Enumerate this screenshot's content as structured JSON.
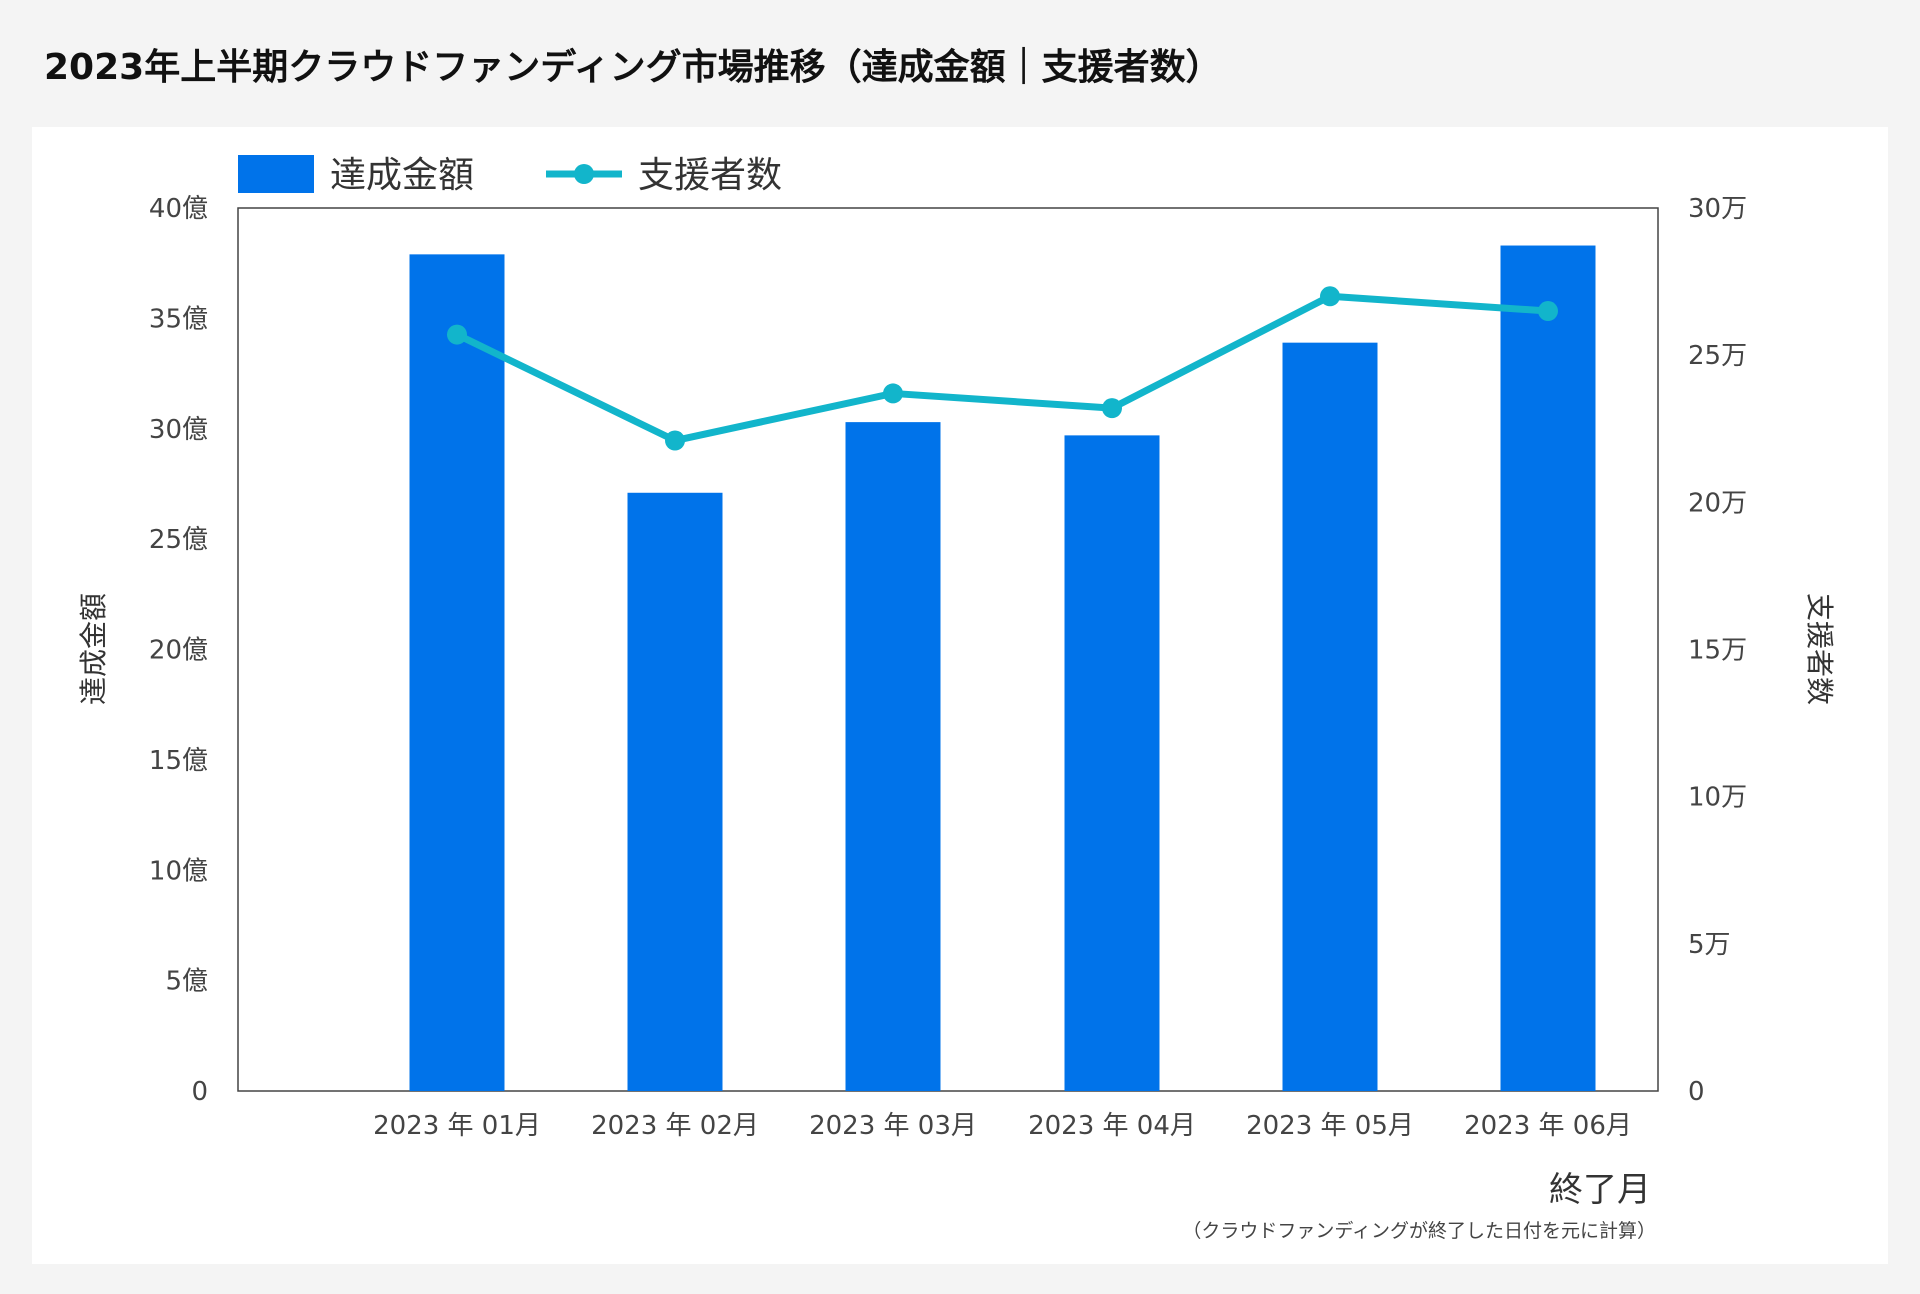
{
  "page": {
    "title": "2023年上半期クラウドファンディング市場推移（達成金額｜支援者数）"
  },
  "colors": {
    "bar": "#0073ea",
    "line": "#12b5cb",
    "axis": "#444444",
    "text": "#444444",
    "background": "#f4f4f4",
    "card": "#ffffff"
  },
  "chart_data": {
    "type": "bar",
    "title": "2023年上半期クラウドファンディング市場推移（達成金額｜支援者数）",
    "categories": [
      "2023 年 01月",
      "2023 年 02月",
      "2023 年 03月",
      "2023 年 04月",
      "2023 年 05月",
      "2023 年 06月"
    ],
    "series": [
      {
        "name": "達成金額",
        "type": "bar",
        "axis": "left",
        "unit": "億",
        "values": [
          37.9,
          27.1,
          30.3,
          29.7,
          33.9,
          38.3
        ]
      },
      {
        "name": "支援者数",
        "type": "line",
        "axis": "right",
        "unit": "万",
        "values": [
          25.7,
          22.1,
          23.7,
          23.2,
          27.0,
          26.5
        ]
      }
    ],
    "ylabel": "達成金額",
    "ylabel_right": "支援者数",
    "xlabel": "終了月",
    "xlabel_note": "（クラウドファンディングが終了した日付を元に計算）",
    "ylim": [
      0,
      40
    ],
    "ylim_right": [
      0,
      30
    ],
    "y_ticks": [
      "0",
      "5億",
      "10億",
      "15億",
      "20億",
      "25億",
      "30億",
      "35億",
      "40億"
    ],
    "y_ticks_right": [
      "0",
      "5万",
      "10万",
      "15万",
      "20万",
      "25万",
      "30万"
    ],
    "legend": {
      "position": "top-left",
      "entries": [
        "達成金額",
        "支援者数"
      ]
    },
    "grid": false
  }
}
